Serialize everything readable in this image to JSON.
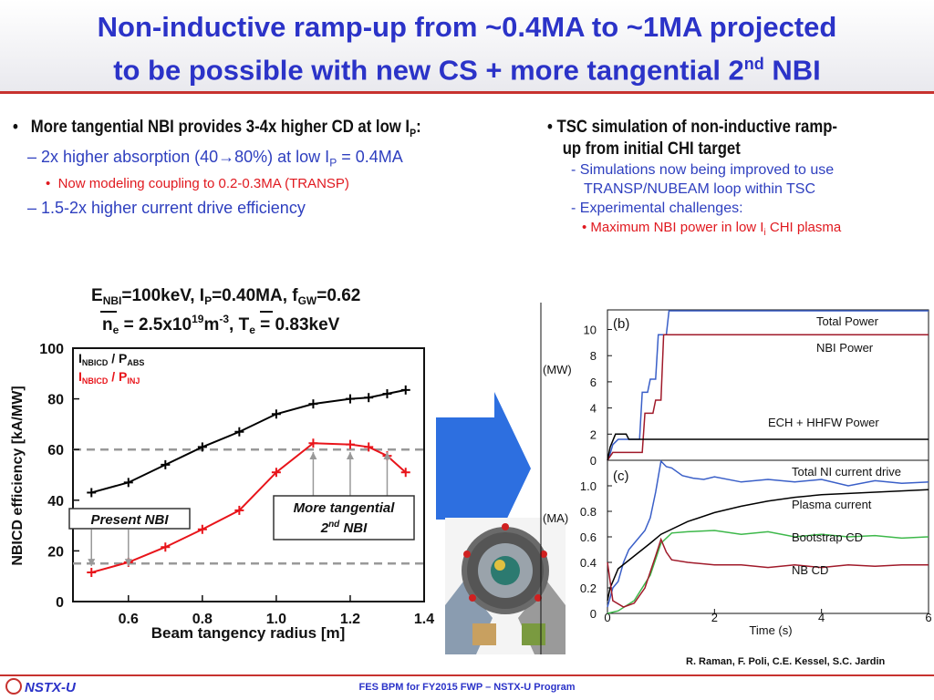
{
  "slide": {
    "title_line1": "Non-inductive ramp-up from ~0.4MA to ~1MA projected",
    "title_line2_prefix": "to be possible with new CS + more tangential 2",
    "title_line2_sup": "nd",
    "title_line2_suffix": " NBI"
  },
  "left_bullets": {
    "b1_text": "More tangential NBI provides 3-4x higher CD at low I",
    "b1_sub": "P",
    "b1_end": ":",
    "b2a_text": "– 2x higher absorption (40",
    "b2a_arrow": "→",
    "b2a_rest": "80%) at low I",
    "b2a_sub": "P",
    "b2a_end": " = 0.4MA",
    "b3_text": "Now modeling coupling to 0.2-0.3MA (TRANSP)",
    "b2b_text": "– 1.5-2x higher current drive efficiency"
  },
  "right_bullets": {
    "rb1_line1": "TSC simulation of non-inductive ramp-",
    "rb1_line2": "up from initial CHI target",
    "rb2a_line1": "- Simulations now being improved to use",
    "rb2a_line2": "TRANSP/NUBEAM  loop within TSC",
    "rb2b": "- Experimental challenges:",
    "rb3_text": "• Maximum NBI power in low I",
    "rb3_sub": "i",
    "rb3_end": " CHI plasma"
  },
  "credit": "R. Raman, F. Poli, C.E. Kessel, S.C. Jardin",
  "footer": {
    "logo": "NSTX-U",
    "center": "FES BPM for FY2015 FWP – NSTX-U Program"
  },
  "colors": {
    "title": "#2b33c8",
    "accent_red": "#c7322f",
    "arrow_blue": "#2d6fe0",
    "black_series": "#000000",
    "red_series": "#e8141a",
    "blue_series": "#3a5fc8",
    "darkred_series": "#a01a2a",
    "green_series": "#3db84a"
  },
  "chart_data": [
    {
      "type": "line",
      "title_parts": {
        "e": "E",
        "e_sub": "NBI",
        "e_val": "=100keV, I",
        "ip_sub": "P",
        "ip_val": "=0.40MA, f",
        "fgw_sub": "GW",
        "fgw_val": "=0.62",
        "ne": "n",
        "ne_sub": "e",
        "ne_val": " = 2.5x10",
        "ne_sup": "19",
        "ne_unit": "m",
        "ne_unit_sup": "-3",
        "te_mid": ", T",
        "te_sub": "e",
        "te_val": " = 0.83keV"
      },
      "xlabel": "Beam tangency radius [m]",
      "ylabel": "NBICD efficiency  [kA/MW]",
      "xlim": [
        0.45,
        1.4
      ],
      "ylim": [
        0,
        100
      ],
      "xticks": [
        0.6,
        0.8,
        1.0,
        1.2,
        1.4
      ],
      "xtick_labels": [
        "0.6",
        "0.8",
        "1.0",
        "1.2",
        "1.4"
      ],
      "yticks": [
        0,
        20,
        40,
        60,
        80,
        100
      ],
      "ytick_labels": [
        "0",
        "20",
        "40",
        "60",
        "80",
        "100"
      ],
      "reference_lines": [
        60,
        15
      ],
      "series": [
        {
          "name": "I_NBICD / P_ABS",
          "legend_main": "I",
          "legend_sub1": "NBICD",
          "legend_mid": " / P",
          "legend_sub2": "ABS",
          "color": "#000000",
          "x": [
            0.5,
            0.6,
            0.7,
            0.8,
            0.9,
            1.0,
            1.1,
            1.2,
            1.25,
            1.3,
            1.35
          ],
          "y": [
            43,
            47,
            54,
            61,
            67,
            74,
            78,
            80,
            80.5,
            82,
            83.5
          ]
        },
        {
          "name": "I_NBICD / P_INJ",
          "legend_main": "I",
          "legend_sub1": "NBICD",
          "legend_mid": " / P",
          "legend_sub2": "INJ",
          "color": "#e8141a",
          "x": [
            0.5,
            0.6,
            0.7,
            0.8,
            0.9,
            1.0,
            1.1,
            1.2,
            1.25,
            1.3,
            1.35
          ],
          "y": [
            11.5,
            15.5,
            21.5,
            28.5,
            36,
            51,
            62.5,
            62,
            61,
            57.5,
            51
          ]
        }
      ],
      "annotations": {
        "present": "Present NBI",
        "more_line1": "More tangential",
        "more_line2_prefix": "2",
        "more_line2_sup": "nd",
        "more_line2_suffix": " NBI",
        "present_arrow_x": [
          0.5,
          0.6
        ],
        "more_arrow_x": [
          1.1,
          1.2,
          1.3
        ]
      }
    },
    {
      "type": "line",
      "panel": "(b)",
      "ylabel": "(MW)",
      "xlim": [
        0,
        6
      ],
      "ylim": [
        0,
        11.5
      ],
      "yticks": [
        0,
        2,
        4,
        6,
        8,
        10
      ],
      "ytick_labels": [
        "0",
        "2",
        "4",
        "6",
        "8",
        "10"
      ],
      "series": [
        {
          "name": "Total Power",
          "color": "#3a5fc8",
          "x": [
            0,
            0.05,
            0.1,
            0.2,
            0.3,
            0.35,
            0.6,
            0.65,
            0.75,
            0.8,
            0.9,
            0.95,
            1.1,
            1.15,
            6
          ],
          "y": [
            0,
            0.5,
            1.2,
            1.6,
            1.6,
            1.6,
            1.6,
            5.2,
            5.2,
            6.2,
            6.2,
            9.6,
            9.6,
            11.6,
            11.6
          ]
        },
        {
          "name": "NBI Power",
          "color": "#a01a2a",
          "x": [
            0,
            0.05,
            0.1,
            0.3,
            0.65,
            0.7,
            0.85,
            0.9,
            1.0,
            1.05,
            6
          ],
          "y": [
            0,
            0.3,
            0.6,
            0.6,
            0.6,
            3.6,
            3.6,
            4.6,
            4.6,
            9.6,
            9.6
          ]
        },
        {
          "name": "ECH + HHFW Power",
          "color": "#000000",
          "x": [
            0,
            0.05,
            0.15,
            0.35,
            0.4,
            6
          ],
          "y": [
            0,
            1.0,
            2.0,
            2.0,
            1.6,
            1.6
          ]
        }
      ]
    },
    {
      "type": "line",
      "panel": "(c)",
      "ylabel": "(MA)",
      "xlabel": "Time (s)",
      "xlim": [
        0,
        6
      ],
      "ylim": [
        0,
        1.2
      ],
      "xticks": [
        0,
        2,
        4,
        6
      ],
      "xtick_labels": [
        "0",
        "2",
        "4",
        "6"
      ],
      "yticks": [
        0,
        0.2,
        0.4,
        0.6,
        0.8,
        1.0
      ],
      "ytick_labels": [
        "0",
        "0.2",
        "0.4",
        "0.6",
        "0.8",
        "1.0"
      ],
      "series": [
        {
          "name": "Total NI current drive",
          "color": "#3a5fc8",
          "x": [
            0,
            0.1,
            0.2,
            0.3,
            0.4,
            0.5,
            0.6,
            0.7,
            0.8,
            0.9,
            1.0,
            1.1,
            1.2,
            1.4,
            1.6,
            1.8,
            2.0,
            2.5,
            3.0,
            3.5,
            4.0,
            4.5,
            5.0,
            5.5,
            6.0
          ],
          "y": [
            0.05,
            0.2,
            0.25,
            0.4,
            0.5,
            0.55,
            0.6,
            0.65,
            0.75,
            0.95,
            1.2,
            1.15,
            1.14,
            1.08,
            1.06,
            1.05,
            1.07,
            1.03,
            1.05,
            1.03,
            1.05,
            1.0,
            1.04,
            1.02,
            1.03
          ]
        },
        {
          "name": "Plasma current",
          "color": "#000000",
          "x": [
            0,
            0.05,
            0.2,
            0.5,
            0.8,
            1.0,
            1.5,
            2.0,
            2.5,
            3.0,
            3.5,
            4.0,
            4.5,
            5.0,
            5.5,
            6.0
          ],
          "y": [
            0.1,
            0.2,
            0.35,
            0.45,
            0.55,
            0.62,
            0.72,
            0.79,
            0.84,
            0.88,
            0.91,
            0.93,
            0.94,
            0.95,
            0.96,
            0.97
          ]
        },
        {
          "name": "Bootstrap CD",
          "color": "#3db84a",
          "x": [
            0,
            0.2,
            0.5,
            0.8,
            1.0,
            1.2,
            1.5,
            2.0,
            2.5,
            3.0,
            3.5,
            4.0,
            4.5,
            5.0,
            5.5,
            6.0
          ],
          "y": [
            0.0,
            0.02,
            0.1,
            0.3,
            0.55,
            0.63,
            0.64,
            0.65,
            0.62,
            0.64,
            0.6,
            0.62,
            0.6,
            0.61,
            0.59,
            0.6
          ]
        },
        {
          "name": "NB CD",
          "color": "#a01a2a",
          "x": [
            0,
            0.1,
            0.3,
            0.5,
            0.7,
            0.9,
            1.0,
            1.1,
            1.2,
            1.5,
            2.0,
            2.5,
            3.0,
            3.5,
            4.0,
            4.5,
            5.0,
            5.5,
            6.0
          ],
          "y": [
            0.4,
            0.1,
            0.05,
            0.08,
            0.2,
            0.45,
            0.58,
            0.48,
            0.42,
            0.4,
            0.38,
            0.38,
            0.36,
            0.38,
            0.36,
            0.38,
            0.37,
            0.38,
            0.38
          ]
        }
      ]
    }
  ]
}
